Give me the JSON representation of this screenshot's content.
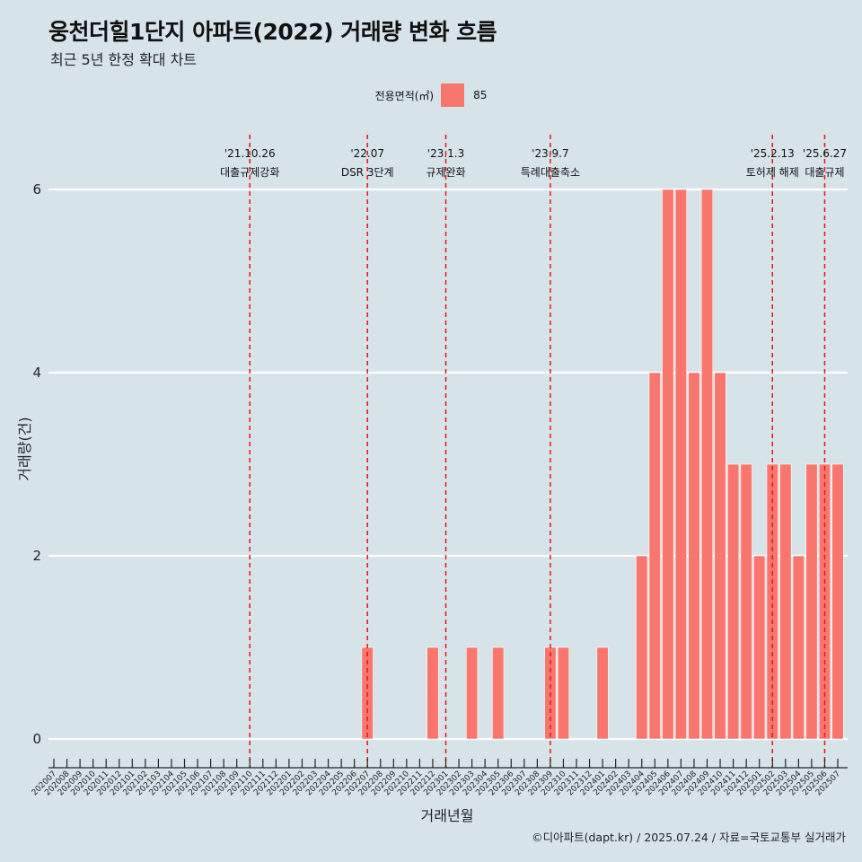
{
  "title": "웅천더힐1단지 아파트(2022) 거래량 변화 흐름",
  "subtitle": "최근 5년 한정 확대 차트",
  "credit": "©디아파트(dapt.kr) / 2025.07.24 / 자료=국토교통부 실거래가",
  "colors": {
    "bar": "#f8766d",
    "event_line": "#ee1111",
    "background": "#d6e4ea",
    "grid": "#ffffff"
  },
  "chart_data": {
    "type": "bar",
    "xlabel": "거래년월",
    "ylabel": "거래량(건)",
    "ylim": [
      0,
      6
    ],
    "yticks": [
      0,
      2,
      4,
      6
    ],
    "grid": true,
    "legend": {
      "title": "전용면적(㎡)",
      "position": "top",
      "entries": [
        "85"
      ]
    },
    "categories": [
      "202007",
      "202008",
      "202009",
      "202010",
      "202011",
      "202012",
      "202101",
      "202102",
      "202103",
      "202104",
      "202105",
      "202106",
      "202107",
      "202108",
      "202109",
      "202110",
      "202111",
      "202112",
      "202201",
      "202202",
      "202203",
      "202204",
      "202205",
      "202206",
      "202207",
      "202208",
      "202209",
      "202210",
      "202211",
      "202212",
      "202301",
      "202302",
      "202303",
      "202304",
      "202305",
      "202306",
      "202307",
      "202308",
      "202309",
      "202310",
      "202311",
      "202312",
      "202401",
      "202402",
      "202403",
      "202404",
      "202405",
      "202406",
      "202407",
      "202408",
      "202409",
      "202410",
      "202411",
      "202412",
      "202501",
      "202502",
      "202503",
      "202504",
      "202505",
      "202506",
      "202507"
    ],
    "series": [
      {
        "name": "85",
        "values": [
          0,
          0,
          0,
          0,
          0,
          0,
          0,
          0,
          0,
          0,
          0,
          0,
          0,
          0,
          0,
          0,
          0,
          0,
          0,
          0,
          0,
          0,
          0,
          0,
          1,
          0,
          0,
          0,
          0,
          1,
          0,
          0,
          1,
          0,
          1,
          0,
          0,
          0,
          1,
          1,
          0,
          0,
          1,
          0,
          0,
          2,
          4,
          6,
          6,
          4,
          6,
          4,
          3,
          3,
          2,
          3,
          3,
          2,
          3,
          3,
          3
        ]
      }
    ],
    "events": [
      {
        "date": "'21.10.26",
        "label": "대출규제강화",
        "month": "202110"
      },
      {
        "date": "'22.07",
        "label": "DSR 3단계",
        "month": "202207"
      },
      {
        "date": "'23.1.3",
        "label": "규제완화",
        "month": "202301"
      },
      {
        "date": "'23.9.7",
        "label": "특례대출축소",
        "month": "202309"
      },
      {
        "date": "'25.2.13",
        "label": "토허제 해제",
        "month": "202502"
      },
      {
        "date": "'25.6.27",
        "label": "대출규제",
        "month": "202506"
      }
    ]
  }
}
